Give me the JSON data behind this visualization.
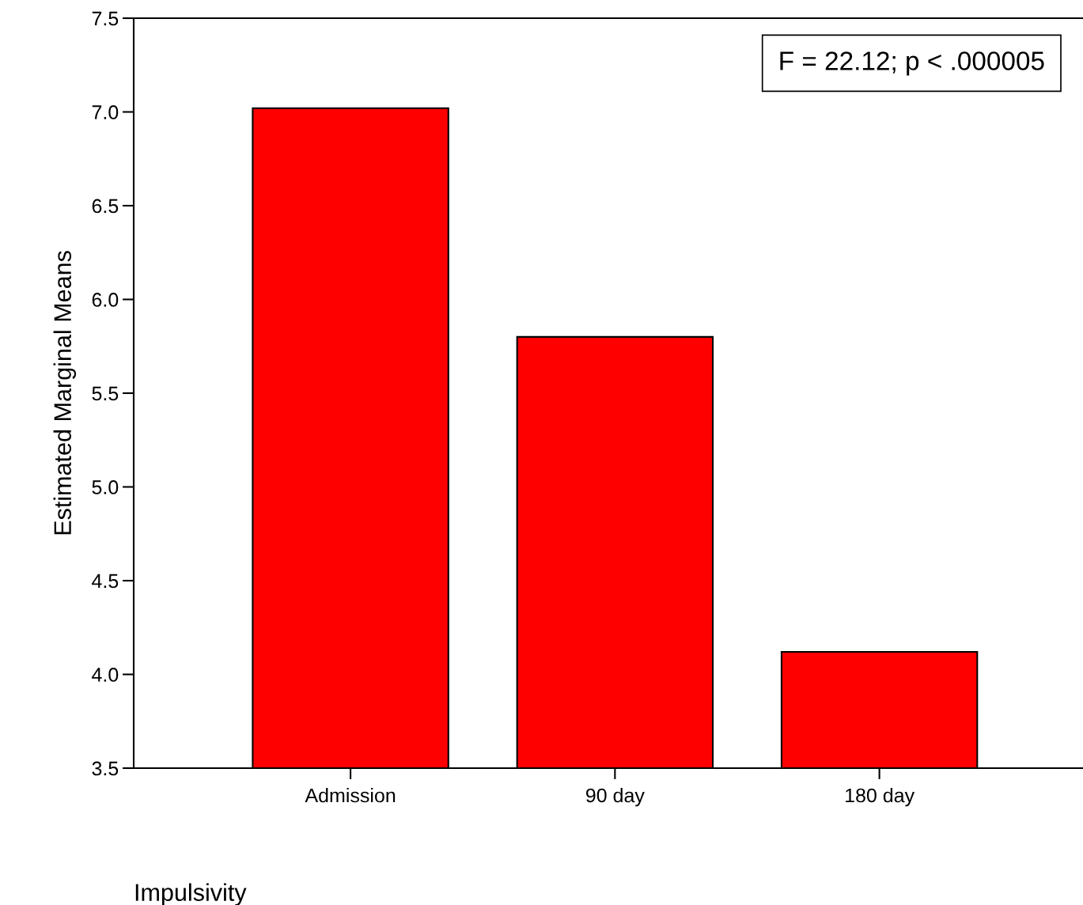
{
  "chart_data": {
    "type": "bar",
    "xlabel": "Impulsivity",
    "ylabel": "Estimated Marginal Means",
    "categories": [
      "Admission",
      "90 day",
      "180 day"
    ],
    "values": [
      7.02,
      5.8,
      4.12
    ],
    "color": "#ff0000",
    "ylim": [
      3.5,
      7.5
    ],
    "yticks": [
      {
        "value": 3.5,
        "label": "3.5"
      },
      {
        "value": 4.0,
        "label": "4.0"
      },
      {
        "value": 4.5,
        "label": "4.5"
      },
      {
        "value": 5.0,
        "label": "5.0"
      },
      {
        "value": 5.5,
        "label": "5.5"
      },
      {
        "value": 6.0,
        "label": "6.0"
      },
      {
        "value": 6.5,
        "label": "6.5"
      },
      {
        "value": 7.0,
        "label": "7.0"
      },
      {
        "value": 7.5,
        "label": "7.5"
      }
    ],
    "annotations": [
      "F = 22.12; p < .000005"
    ],
    "grid": false,
    "legend": false
  }
}
